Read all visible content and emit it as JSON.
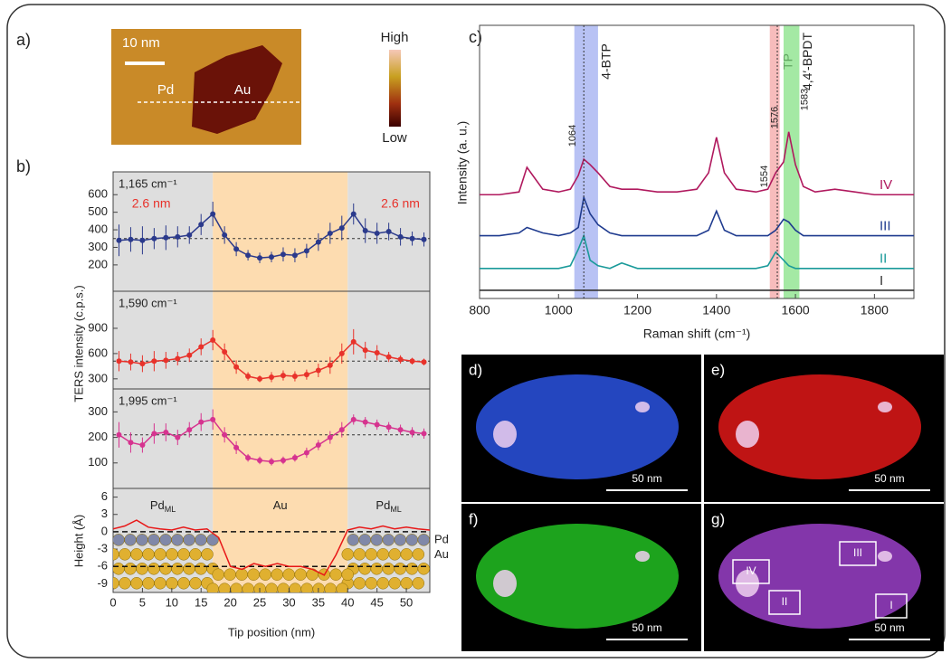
{
  "panel_labels": [
    "a)",
    "b)",
    "c)"
  ],
  "image_a": {
    "scale": "10 nm",
    "markers": [
      "Pd",
      "Au",
      "Pd"
    ],
    "colorbar": [
      "High",
      "Low"
    ]
  },
  "maps": [
    {
      "label": "d)",
      "scale": "50 nm",
      "color": "#2a52e0"
    },
    {
      "label": "e)",
      "scale": "50 nm",
      "color": "#e01818"
    },
    {
      "label": "f)",
      "scale": "50 nm",
      "color": "#22c022"
    },
    {
      "label": "g)",
      "scale": "50 nm",
      "color": "#9a40c8",
      "boxes": [
        "IV",
        "III",
        "II",
        "I"
      ]
    }
  ],
  "chart_data": [
    {
      "type": "line",
      "label": "1,165 cm⁻¹",
      "ylabel": "TERS intensity (c.p.s.)",
      "annotations": [
        "2.6 nm",
        "2.6 nm"
      ],
      "color": "#2b3a8c",
      "x": [
        1,
        3,
        5,
        7,
        9,
        11,
        13,
        15,
        17,
        19,
        21,
        23,
        25,
        27,
        29,
        31,
        33,
        35,
        37,
        39,
        41,
        43,
        45,
        47,
        49,
        51,
        53
      ],
      "values": [
        340,
        345,
        340,
        350,
        355,
        360,
        370,
        430,
        490,
        370,
        290,
        255,
        240,
        245,
        260,
        255,
        280,
        330,
        380,
        410,
        490,
        395,
        380,
        390,
        360,
        350,
        345
      ],
      "errors": [
        90,
        70,
        80,
        60,
        70,
        60,
        50,
        60,
        70,
        50,
        40,
        30,
        30,
        30,
        40,
        40,
        40,
        50,
        60,
        70,
        60,
        70,
        60,
        50,
        50,
        40,
        40
      ],
      "hline": 350,
      "xlim": [
        0,
        54
      ],
      "ylim": [
        50,
        730
      ],
      "yticks": [
        200,
        300,
        400,
        500,
        600
      ]
    },
    {
      "type": "line",
      "label": "1,590 cm⁻¹",
      "color": "#e8322b",
      "x": [
        1,
        3,
        5,
        7,
        9,
        11,
        13,
        15,
        17,
        19,
        21,
        23,
        25,
        27,
        29,
        31,
        33,
        35,
        37,
        39,
        41,
        43,
        45,
        47,
        49,
        51,
        53
      ],
      "values": [
        510,
        500,
        480,
        510,
        520,
        540,
        580,
        680,
        760,
        620,
        440,
        330,
        300,
        320,
        340,
        330,
        350,
        400,
        460,
        600,
        740,
        640,
        610,
        560,
        530,
        510,
        500
      ],
      "errors": [
        120,
        100,
        100,
        120,
        100,
        80,
        80,
        100,
        120,
        100,
        80,
        50,
        40,
        60,
        60,
        60,
        60,
        80,
        100,
        120,
        150,
        100,
        90,
        60,
        50,
        40,
        40
      ],
      "hline": 510,
      "xlim": [
        0,
        54
      ],
      "ylim": [
        180,
        1340
      ],
      "yticks": [
        300,
        600,
        900
      ]
    },
    {
      "type": "line",
      "label": "1,995 cm⁻¹",
      "color": "#d6338f",
      "x": [
        1,
        3,
        5,
        7,
        9,
        11,
        13,
        15,
        17,
        19,
        21,
        23,
        25,
        27,
        29,
        31,
        33,
        35,
        37,
        39,
        41,
        43,
        45,
        47,
        49,
        51,
        53
      ],
      "values": [
        210,
        180,
        170,
        215,
        220,
        200,
        230,
        260,
        270,
        210,
        160,
        120,
        110,
        105,
        110,
        120,
        140,
        170,
        200,
        230,
        270,
        260,
        250,
        240,
        230,
        220,
        215
      ],
      "errors": [
        50,
        40,
        30,
        40,
        35,
        30,
        30,
        35,
        40,
        30,
        25,
        15,
        15,
        15,
        15,
        15,
        20,
        20,
        25,
        30,
        20,
        20,
        20,
        20,
        20,
        20,
        20
      ],
      "hline": 210,
      "xlim": [
        0,
        54
      ],
      "ylim": [
        0,
        390
      ],
      "yticks": [
        100,
        200,
        300
      ]
    },
    {
      "type": "line",
      "xlabel": "Tip position (nm)",
      "ylabel": "Height (Å)",
      "color": "#e81818",
      "regions": [
        {
          "range": [
            0,
            17
          ],
          "color": "#dedede"
        },
        {
          "range": [
            17,
            40
          ],
          "color": "#fddcb0"
        },
        {
          "range": [
            40,
            54
          ],
          "color": "#dedede"
        }
      ],
      "region_labels": [
        {
          "text": "Pd",
          "sub": "ML"
        },
        {
          "text": "Au"
        },
        {
          "text": "Pd",
          "sub": "ML"
        }
      ],
      "layer_labels": [
        "Pd",
        "Au"
      ],
      "x": [
        0,
        2,
        4,
        6,
        8,
        10,
        12,
        14,
        16,
        18,
        20,
        22,
        24,
        26,
        28,
        30,
        32,
        34,
        36,
        38,
        40,
        42,
        44,
        46,
        48,
        50,
        52,
        54
      ],
      "values": [
        0.5,
        1,
        2,
        0.8,
        0.5,
        0.3,
        0.8,
        0.3,
        0.5,
        -1,
        -6,
        -6.5,
        -5.5,
        -6,
        -5.5,
        -6,
        -6,
        -6.5,
        -7.5,
        -4,
        0.3,
        0.8,
        0.5,
        1,
        0.5,
        0.8,
        0.5,
        0.3
      ],
      "hlines": [
        0,
        -6
      ],
      "xlim": [
        0,
        54
      ],
      "ylim": [
        -10.5,
        7.5
      ],
      "xticks": [
        0,
        5,
        10,
        15,
        20,
        25,
        30,
        35,
        40,
        45,
        50
      ],
      "yticks": [
        6,
        3,
        0,
        -3,
        -6,
        -9
      ]
    },
    {
      "type": "spectra",
      "xlabel": "Raman shift (cm⁻¹)",
      "ylabel": "Intensity (a. u.)",
      "x": [
        800,
        850,
        900,
        920,
        940,
        960,
        1000,
        1030,
        1050,
        1064,
        1080,
        1100,
        1130,
        1160,
        1200,
        1250,
        1300,
        1350,
        1380,
        1400,
        1420,
        1450,
        1500,
        1530,
        1550,
        1570,
        1583,
        1600,
        1620,
        1650,
        1700,
        1750,
        1800,
        1850,
        1900
      ],
      "series": [
        {
          "name": "IV",
          "color": "#b0195e",
          "values": [
            3.8,
            3.8,
            3.9,
            4.8,
            4.4,
            4.0,
            3.9,
            4.0,
            4.5,
            5.1,
            4.9,
            4.6,
            4.1,
            4.0,
            4.0,
            3.9,
            3.9,
            4.0,
            4.6,
            5.9,
            4.6,
            4.0,
            3.9,
            4.0,
            4.6,
            5.0,
            6.1,
            4.9,
            4.1,
            3.9,
            4.0,
            3.9,
            3.8,
            3.8,
            3.8
          ]
        },
        {
          "name": "III",
          "color": "#1f3b8f",
          "values": [
            2.3,
            2.3,
            2.4,
            2.6,
            2.5,
            2.4,
            2.3,
            2.4,
            2.6,
            3.7,
            3.1,
            2.7,
            2.4,
            2.3,
            2.3,
            2.3,
            2.3,
            2.3,
            2.5,
            3.2,
            2.5,
            2.3,
            2.3,
            2.3,
            2.5,
            2.9,
            2.8,
            2.5,
            2.3,
            2.3,
            2.3,
            2.3,
            2.3,
            2.3,
            2.3
          ]
        },
        {
          "name": "II",
          "color": "#1a9a9a",
          "values": [
            1.1,
            1.1,
            1.1,
            1.1,
            1.1,
            1.1,
            1.1,
            1.2,
            1.8,
            2.3,
            1.4,
            1.2,
            1.1,
            1.3,
            1.1,
            1.1,
            1.1,
            1.1,
            1.1,
            1.1,
            1.1,
            1.1,
            1.1,
            1.2,
            1.7,
            1.4,
            1.2,
            1.1,
            1.1,
            1.1,
            1.1,
            1.1,
            1.1,
            1.1,
            1.1
          ]
        },
        {
          "name": "I",
          "color": "#333333",
          "values": [
            0.3,
            0.3,
            0.3,
            0.3,
            0.3,
            0.3,
            0.3,
            0.3,
            0.3,
            0.3,
            0.3,
            0.3,
            0.3,
            0.3,
            0.3,
            0.3,
            0.3,
            0.3,
            0.3,
            0.3,
            0.3,
            0.3,
            0.3,
            0.3,
            0.3,
            0.3,
            0.3,
            0.3,
            0.3,
            0.3,
            0.3,
            0.3,
            0.3,
            0.3,
            0.3
          ]
        }
      ],
      "bands": [
        {
          "label": "4-BTP",
          "range": [
            1040,
            1100
          ],
          "color": "#9aa8f0"
        },
        {
          "label": "TP",
          "range": [
            1535,
            1560
          ],
          "color": "#f4a0a0"
        },
        {
          "label": "4,4′-BPDT",
          "range": [
            1570,
            1610
          ],
          "color": "#7ee07e"
        }
      ],
      "peak_labels": [
        1064,
        1554,
        1576,
        1583
      ],
      "xlim": [
        800,
        1900
      ],
      "ylim": [
        0,
        10
      ],
      "xticks": [
        800,
        1000,
        1200,
        1400,
        1600,
        1800
      ]
    }
  ]
}
